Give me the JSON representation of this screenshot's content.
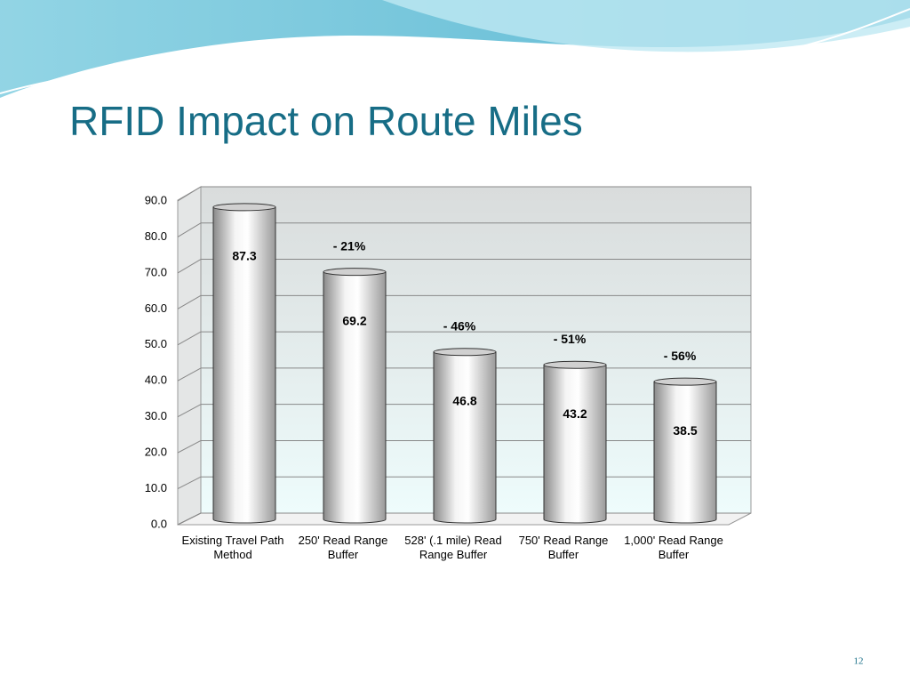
{
  "title": "RFID Impact on Route Miles",
  "slide_number": "12",
  "chart_data": {
    "type": "bar",
    "categories": [
      "Existing Travel Path Method",
      "250' Read Range Buffer",
      "528' (.1 mile) Read Range Buffer",
      "750' Read Range Buffer",
      "1,000' Read Range Buffer"
    ],
    "values": [
      87.3,
      69.2,
      46.8,
      43.2,
      38.5
    ],
    "change_labels": [
      null,
      "- 21%",
      "- 46%",
      "- 51%",
      "- 56%"
    ],
    "color": "#d0d0d0",
    "ylim": [
      0,
      90
    ],
    "yticks": [
      {
        "value": 0,
        "label": "0.0"
      },
      {
        "value": 10,
        "label": "10.0"
      },
      {
        "value": 20,
        "label": "20.0"
      },
      {
        "value": 30,
        "label": "30.0"
      },
      {
        "value": 40,
        "label": "40.0"
      },
      {
        "value": 50,
        "label": "50.0"
      },
      {
        "value": 60,
        "label": "60.0"
      },
      {
        "value": 70,
        "label": "70.0"
      },
      {
        "value": 80,
        "label": "80.0"
      },
      {
        "value": 90,
        "label": "90.0"
      }
    ],
    "grid": true
  }
}
